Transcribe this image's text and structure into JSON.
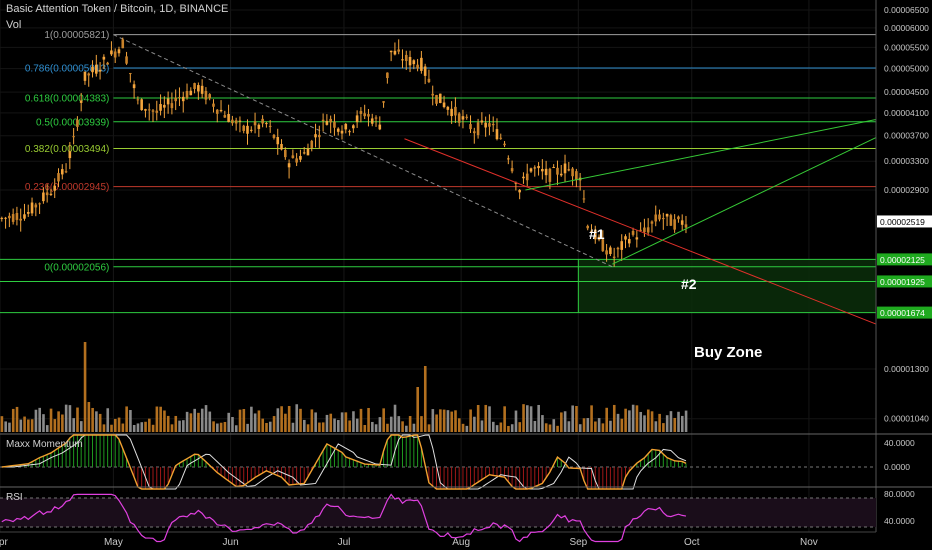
{
  "header": {
    "title": "Basic Attention Token / Bitcoin, 1D, BINANCE",
    "vol_label": "Vol"
  },
  "panels": {
    "momentum_title": "Maxx Momentum",
    "rsi_title": "RSI"
  },
  "annotations": {
    "mark1": "#1",
    "mark2": "#2",
    "buy_zone": "Buy Zone"
  },
  "colors": {
    "background": "#000000",
    "candle": "#f4a53d",
    "fib_gray": "#9e9e9e",
    "fib_blue": "#2f8fd1",
    "fib_green": "#2ecc40",
    "fib_olive": "#9acd32",
    "fib_red": "#c0392b",
    "trendline_red": "#e0302a",
    "trendline_green": "#36c936",
    "volume_orange": "#b3701f",
    "volume_gray": "#8a8a8a",
    "rsi_line": "#e040e0",
    "momentum_orange": "#f0a030",
    "momentum_white": "#e0e0e0",
    "buy_zone_fill": "#0b2e0b"
  },
  "chart_data": {
    "type": "candlestick",
    "title": "Basic Attention Token / Bitcoin, 1D, BINANCE",
    "x_ticks": [
      "Apr",
      "May",
      "Jun",
      "Jul",
      "Aug",
      "Sep",
      "Oct",
      "Nov"
    ],
    "y_ticks": [
      "0.00006500",
      "0.00006000",
      "0.00005500",
      "0.00005000",
      "0.00004500",
      "0.00004100",
      "0.00003700",
      "0.00003300",
      "0.00002900",
      "0.00002519",
      "0.00001300",
      "0.00001040"
    ],
    "y_scale": "log",
    "ylim": [
      9.8e-06,
      6.8e-05
    ],
    "fib_levels": [
      {
        "ratio": "1",
        "value": "0.00005821"
      },
      {
        "ratio": "0.786",
        "value": "0.00005013"
      },
      {
        "ratio": "0.618",
        "value": "0.00004383"
      },
      {
        "ratio": "0.5",
        "value": "0.00003939"
      },
      {
        "ratio": "0.382",
        "value": "0.00003494"
      },
      {
        "ratio": "0.236",
        "value": "0.00002945"
      },
      {
        "ratio": "0",
        "value": "0.00002056"
      }
    ],
    "last_price": "0.00002519",
    "buy_zone_levels": [
      "0.00002125",
      "0.00001925",
      "0.00001674"
    ],
    "price_path": [
      {
        "d": "2018-04-01",
        "v": 2.55e-05
      },
      {
        "d": "2018-04-08",
        "v": 2.62e-05
      },
      {
        "d": "2018-04-14",
        "v": 2.9e-05
      },
      {
        "d": "2018-04-18",
        "v": 3.2e-05
      },
      {
        "d": "2018-04-20",
        "v": 3.6e-05
      },
      {
        "d": "2018-04-23",
        "v": 4.8e-05
      },
      {
        "d": "2018-04-26",
        "v": 5e-05
      },
      {
        "d": "2018-05-01",
        "v": 5.4e-05
      },
      {
        "d": "2018-05-03",
        "v": 5.6e-05
      },
      {
        "d": "2018-05-07",
        "v": 4.3e-05
      },
      {
        "d": "2018-05-12",
        "v": 4.1e-05
      },
      {
        "d": "2018-05-18",
        "v": 4.4e-05
      },
      {
        "d": "2018-05-23",
        "v": 4.6e-05
      },
      {
        "d": "2018-05-28",
        "v": 4.2e-05
      },
      {
        "d": "2018-06-04",
        "v": 3.8e-05
      },
      {
        "d": "2018-06-10",
        "v": 3.9e-05
      },
      {
        "d": "2018-06-16",
        "v": 3.3e-05
      },
      {
        "d": "2018-06-20",
        "v": 3.4e-05
      },
      {
        "d": "2018-06-26",
        "v": 4e-05
      },
      {
        "d": "2018-07-01",
        "v": 3.8e-05
      },
      {
        "d": "2018-07-06",
        "v": 4.1e-05
      },
      {
        "d": "2018-07-10",
        "v": 3.9e-05
      },
      {
        "d": "2018-07-13",
        "v": 5.4e-05
      },
      {
        "d": "2018-07-17",
        "v": 5.2e-05
      },
      {
        "d": "2018-07-21",
        "v": 5.1e-05
      },
      {
        "d": "2018-07-25",
        "v": 4.4e-05
      },
      {
        "d": "2018-07-30",
        "v": 4.1e-05
      },
      {
        "d": "2018-08-04",
        "v": 3.8e-05
      },
      {
        "d": "2018-08-08",
        "v": 3.9e-05
      },
      {
        "d": "2018-08-12",
        "v": 3.6e-05
      },
      {
        "d": "2018-08-16",
        "v": 2.9e-05
      },
      {
        "d": "2018-08-19",
        "v": 3.2e-05
      },
      {
        "d": "2018-08-24",
        "v": 3.1e-05
      },
      {
        "d": "2018-08-28",
        "v": 3.2e-05
      },
      {
        "d": "2018-09-01",
        "v": 3.1e-05
      },
      {
        "d": "2018-09-03",
        "v": 2.5e-05
      },
      {
        "d": "2018-09-06",
        "v": 2.3e-05
      },
      {
        "d": "2018-09-10",
        "v": 2.15e-05
      },
      {
        "d": "2018-09-14",
        "v": 2.35e-05
      },
      {
        "d": "2018-09-18",
        "v": 2.4e-05
      },
      {
        "d": "2018-09-22",
        "v": 2.58e-05
      },
      {
        "d": "2018-09-26",
        "v": 2.5e-05
      },
      {
        "d": "2018-09-29",
        "v": 2.52e-05
      }
    ],
    "momentum_ticks": [
      "40.0000",
      "0.0000"
    ],
    "rsi_ticks": [
      "80.0000",
      "40.0000"
    ]
  }
}
